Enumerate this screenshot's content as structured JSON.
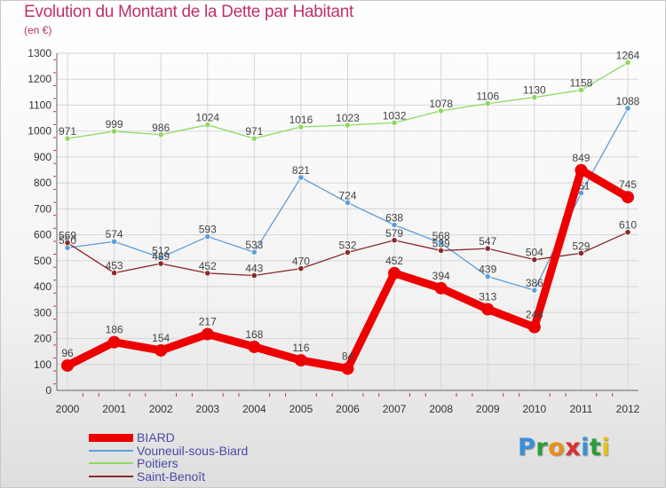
{
  "title": "Evolution du Montant de la Dette par Habitant",
  "unit": "(en €)",
  "logo": {
    "letters": [
      "P",
      "r",
      "o",
      "x",
      "i",
      "t",
      "i"
    ],
    "colors": [
      "#3a8fd8",
      "#2a9d3a",
      "#e8911a",
      "#d83030",
      "#3a8fd8",
      "#2a9d3a",
      "#e8c21a"
    ]
  },
  "chart_data": {
    "type": "line",
    "title": "Evolution du Montant de la Dette par Habitant",
    "ylabel": "(en €)",
    "ylim": [
      0,
      1300
    ],
    "yticks": [
      0,
      100,
      200,
      300,
      400,
      500,
      600,
      700,
      800,
      900,
      1000,
      1100,
      1200,
      1300
    ],
    "x": [
      "2000",
      "2001",
      "2002",
      "2003",
      "2004",
      "2005",
      "2006",
      "2007",
      "2008",
      "2009",
      "2010",
      "2011",
      "2012"
    ],
    "series": [
      {
        "name": "BIARD",
        "color": "#ee0000",
        "values": [
          96,
          186,
          154,
          217,
          168,
          116,
          84,
          452,
          394,
          313,
          244,
          849,
          745
        ],
        "labels": [
          "96",
          "186",
          "154",
          "217",
          "168",
          "116",
          "84",
          "452",
          "394",
          "313",
          "244",
          "849",
          "745"
        ]
      },
      {
        "name": "Vouneuil-sous-Biard",
        "color": "#5f9ed8",
        "values": [
          550,
          574,
          512,
          593,
          533,
          821,
          724,
          638,
          568,
          439,
          386,
          761,
          1088
        ],
        "labels": [
          "550",
          "574",
          "512",
          "593",
          "533",
          "821",
          "724",
          "638",
          "568",
          "439",
          "386",
          "761",
          "1088"
        ]
      },
      {
        "name": "Poitiers",
        "color": "#8fd860",
        "values": [
          971,
          999,
          986,
          1024,
          971,
          1016,
          1023,
          1032,
          1078,
          1106,
          1130,
          1158,
          1264
        ],
        "labels": [
          "971",
          "999",
          "986",
          "1024",
          "971",
          "1016",
          "1023",
          "1032",
          "1078",
          "1106",
          "1130",
          "1158",
          "1264"
        ]
      },
      {
        "name": "Saint-Benoît",
        "color": "#8a2a2a",
        "values": [
          569,
          453,
          489,
          452,
          443,
          470,
          532,
          579,
          539,
          547,
          504,
          529,
          610
        ],
        "labels": [
          "569",
          "453",
          "489",
          "452",
          "443",
          "470",
          "532",
          "579",
          "539",
          "547",
          "504",
          "529",
          "610"
        ]
      }
    ],
    "grid": true,
    "legend": "bottom-left"
  }
}
